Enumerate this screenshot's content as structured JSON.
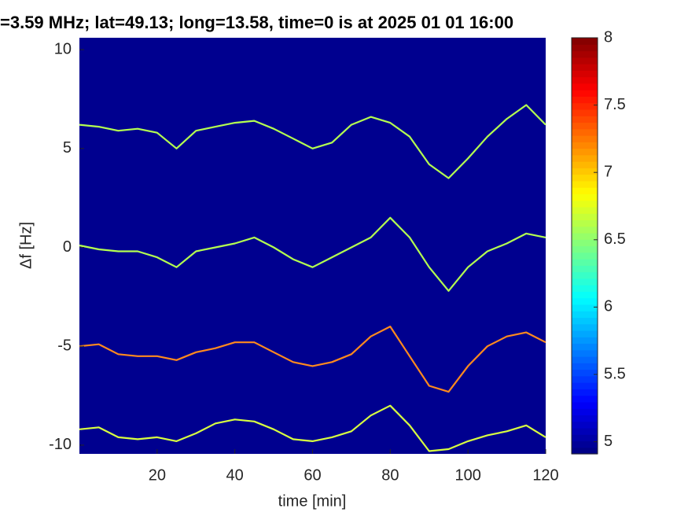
{
  "chart_data": {
    "type": "line",
    "title": "=3.59 MHz;  lat=49.13; long=13.58, time=0 is at 2025 01 01 16:00",
    "x_label": "time [min]",
    "y_label": "Δf [Hz]",
    "x": [
      0,
      5,
      10,
      15,
      20,
      25,
      30,
      35,
      40,
      45,
      50,
      55,
      60,
      65,
      70,
      75,
      80,
      85,
      90,
      95,
      100,
      105,
      110,
      115,
      120
    ],
    "series": [
      {
        "color": "#b4ff50",
        "values": [
          6.2,
          6.1,
          5.9,
          6.0,
          5.8,
          5.0,
          5.9,
          6.1,
          6.3,
          6.4,
          6.0,
          5.5,
          5.0,
          5.3,
          6.2,
          6.6,
          6.3,
          5.6,
          4.2,
          3.5,
          4.5,
          5.6,
          6.5,
          7.2,
          6.2
        ]
      },
      {
        "color": "#b4ff50",
        "values": [
          0.1,
          -0.1,
          -0.2,
          -0.2,
          -0.5,
          -1.0,
          -0.2,
          0.0,
          0.2,
          0.5,
          0.0,
          -0.6,
          -1.0,
          -0.5,
          0.0,
          0.5,
          1.5,
          0.5,
          -1.0,
          -2.2,
          -1.0,
          -0.2,
          0.2,
          0.7,
          0.5
        ]
      },
      {
        "color": "#ff8a1e",
        "values": [
          -5.0,
          -4.9,
          -5.4,
          -5.5,
          -5.5,
          -5.7,
          -5.3,
          -5.1,
          -4.8,
          -4.8,
          -5.3,
          -5.8,
          -6.0,
          -5.8,
          -5.4,
          -4.5,
          -4.0,
          -5.5,
          -7.0,
          -7.3,
          -6.0,
          -5.0,
          -4.5,
          -4.3,
          -4.8
        ]
      },
      {
        "color": "#d8ff40",
        "values": [
          -9.2,
          -9.1,
          -9.6,
          -9.7,
          -9.6,
          -9.8,
          -9.4,
          -8.9,
          -8.7,
          -8.8,
          -9.2,
          -9.7,
          -9.8,
          -9.6,
          -9.3,
          -8.5,
          -8.0,
          -9.0,
          -10.3,
          -10.2,
          -9.8,
          -9.5,
          -9.3,
          -9.0,
          -9.6
        ]
      }
    ],
    "xlim": [
      0,
      120
    ],
    "xticks": [
      20,
      40,
      60,
      80,
      100,
      120
    ],
    "ylim": [
      -10.44,
      10.6
    ],
    "yticks": [
      -10,
      -5,
      0,
      5,
      10
    ],
    "background": "#00008f",
    "colormap": "jet",
    "clim": [
      4.91,
      8
    ],
    "cticks": [
      5,
      5.5,
      6,
      6.5,
      7,
      7.5,
      8
    ]
  }
}
